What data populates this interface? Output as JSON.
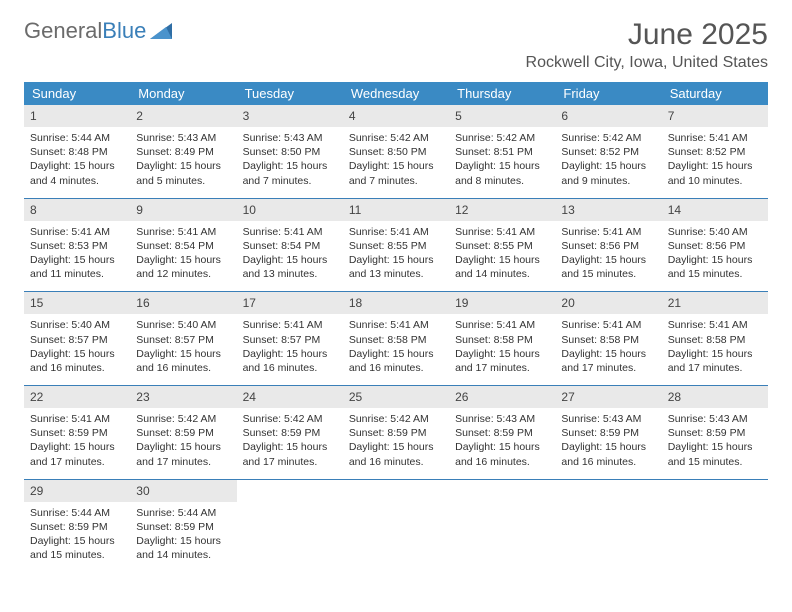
{
  "logo": {
    "text1": "General",
    "text2": "Blue"
  },
  "title": "June 2025",
  "location": "Rockwell City, Iowa, United States",
  "colors": {
    "header_bg": "#3a8ac4",
    "header_text": "#ffffff",
    "daynum_bg": "#e9e9e9",
    "rule": "#3a7fb8",
    "logo_gray": "#6b6b6b",
    "logo_blue": "#3a7fb8"
  },
  "dayNames": [
    "Sunday",
    "Monday",
    "Tuesday",
    "Wednesday",
    "Thursday",
    "Friday",
    "Saturday"
  ],
  "weeks": [
    [
      {
        "n": "1",
        "sr": "Sunrise: 5:44 AM",
        "ss": "Sunset: 8:48 PM",
        "dl": "Daylight: 15 hours and 4 minutes."
      },
      {
        "n": "2",
        "sr": "Sunrise: 5:43 AM",
        "ss": "Sunset: 8:49 PM",
        "dl": "Daylight: 15 hours and 5 minutes."
      },
      {
        "n": "3",
        "sr": "Sunrise: 5:43 AM",
        "ss": "Sunset: 8:50 PM",
        "dl": "Daylight: 15 hours and 7 minutes."
      },
      {
        "n": "4",
        "sr": "Sunrise: 5:42 AM",
        "ss": "Sunset: 8:50 PM",
        "dl": "Daylight: 15 hours and 7 minutes."
      },
      {
        "n": "5",
        "sr": "Sunrise: 5:42 AM",
        "ss": "Sunset: 8:51 PM",
        "dl": "Daylight: 15 hours and 8 minutes."
      },
      {
        "n": "6",
        "sr": "Sunrise: 5:42 AM",
        "ss": "Sunset: 8:52 PM",
        "dl": "Daylight: 15 hours and 9 minutes."
      },
      {
        "n": "7",
        "sr": "Sunrise: 5:41 AM",
        "ss": "Sunset: 8:52 PM",
        "dl": "Daylight: 15 hours and 10 minutes."
      }
    ],
    [
      {
        "n": "8",
        "sr": "Sunrise: 5:41 AM",
        "ss": "Sunset: 8:53 PM",
        "dl": "Daylight: 15 hours and 11 minutes."
      },
      {
        "n": "9",
        "sr": "Sunrise: 5:41 AM",
        "ss": "Sunset: 8:54 PM",
        "dl": "Daylight: 15 hours and 12 minutes."
      },
      {
        "n": "10",
        "sr": "Sunrise: 5:41 AM",
        "ss": "Sunset: 8:54 PM",
        "dl": "Daylight: 15 hours and 13 minutes."
      },
      {
        "n": "11",
        "sr": "Sunrise: 5:41 AM",
        "ss": "Sunset: 8:55 PM",
        "dl": "Daylight: 15 hours and 13 minutes."
      },
      {
        "n": "12",
        "sr": "Sunrise: 5:41 AM",
        "ss": "Sunset: 8:55 PM",
        "dl": "Daylight: 15 hours and 14 minutes."
      },
      {
        "n": "13",
        "sr": "Sunrise: 5:41 AM",
        "ss": "Sunset: 8:56 PM",
        "dl": "Daylight: 15 hours and 15 minutes."
      },
      {
        "n": "14",
        "sr": "Sunrise: 5:40 AM",
        "ss": "Sunset: 8:56 PM",
        "dl": "Daylight: 15 hours and 15 minutes."
      }
    ],
    [
      {
        "n": "15",
        "sr": "Sunrise: 5:40 AM",
        "ss": "Sunset: 8:57 PM",
        "dl": "Daylight: 15 hours and 16 minutes."
      },
      {
        "n": "16",
        "sr": "Sunrise: 5:40 AM",
        "ss": "Sunset: 8:57 PM",
        "dl": "Daylight: 15 hours and 16 minutes."
      },
      {
        "n": "17",
        "sr": "Sunrise: 5:41 AM",
        "ss": "Sunset: 8:57 PM",
        "dl": "Daylight: 15 hours and 16 minutes."
      },
      {
        "n": "18",
        "sr": "Sunrise: 5:41 AM",
        "ss": "Sunset: 8:58 PM",
        "dl": "Daylight: 15 hours and 16 minutes."
      },
      {
        "n": "19",
        "sr": "Sunrise: 5:41 AM",
        "ss": "Sunset: 8:58 PM",
        "dl": "Daylight: 15 hours and 17 minutes."
      },
      {
        "n": "20",
        "sr": "Sunrise: 5:41 AM",
        "ss": "Sunset: 8:58 PM",
        "dl": "Daylight: 15 hours and 17 minutes."
      },
      {
        "n": "21",
        "sr": "Sunrise: 5:41 AM",
        "ss": "Sunset: 8:58 PM",
        "dl": "Daylight: 15 hours and 17 minutes."
      }
    ],
    [
      {
        "n": "22",
        "sr": "Sunrise: 5:41 AM",
        "ss": "Sunset: 8:59 PM",
        "dl": "Daylight: 15 hours and 17 minutes."
      },
      {
        "n": "23",
        "sr": "Sunrise: 5:42 AM",
        "ss": "Sunset: 8:59 PM",
        "dl": "Daylight: 15 hours and 17 minutes."
      },
      {
        "n": "24",
        "sr": "Sunrise: 5:42 AM",
        "ss": "Sunset: 8:59 PM",
        "dl": "Daylight: 15 hours and 17 minutes."
      },
      {
        "n": "25",
        "sr": "Sunrise: 5:42 AM",
        "ss": "Sunset: 8:59 PM",
        "dl": "Daylight: 15 hours and 16 minutes."
      },
      {
        "n": "26",
        "sr": "Sunrise: 5:43 AM",
        "ss": "Sunset: 8:59 PM",
        "dl": "Daylight: 15 hours and 16 minutes."
      },
      {
        "n": "27",
        "sr": "Sunrise: 5:43 AM",
        "ss": "Sunset: 8:59 PM",
        "dl": "Daylight: 15 hours and 16 minutes."
      },
      {
        "n": "28",
        "sr": "Sunrise: 5:43 AM",
        "ss": "Sunset: 8:59 PM",
        "dl": "Daylight: 15 hours and 15 minutes."
      }
    ],
    [
      {
        "n": "29",
        "sr": "Sunrise: 5:44 AM",
        "ss": "Sunset: 8:59 PM",
        "dl": "Daylight: 15 hours and 15 minutes."
      },
      {
        "n": "30",
        "sr": "Sunrise: 5:44 AM",
        "ss": "Sunset: 8:59 PM",
        "dl": "Daylight: 15 hours and 14 minutes."
      },
      null,
      null,
      null,
      null,
      null
    ]
  ]
}
